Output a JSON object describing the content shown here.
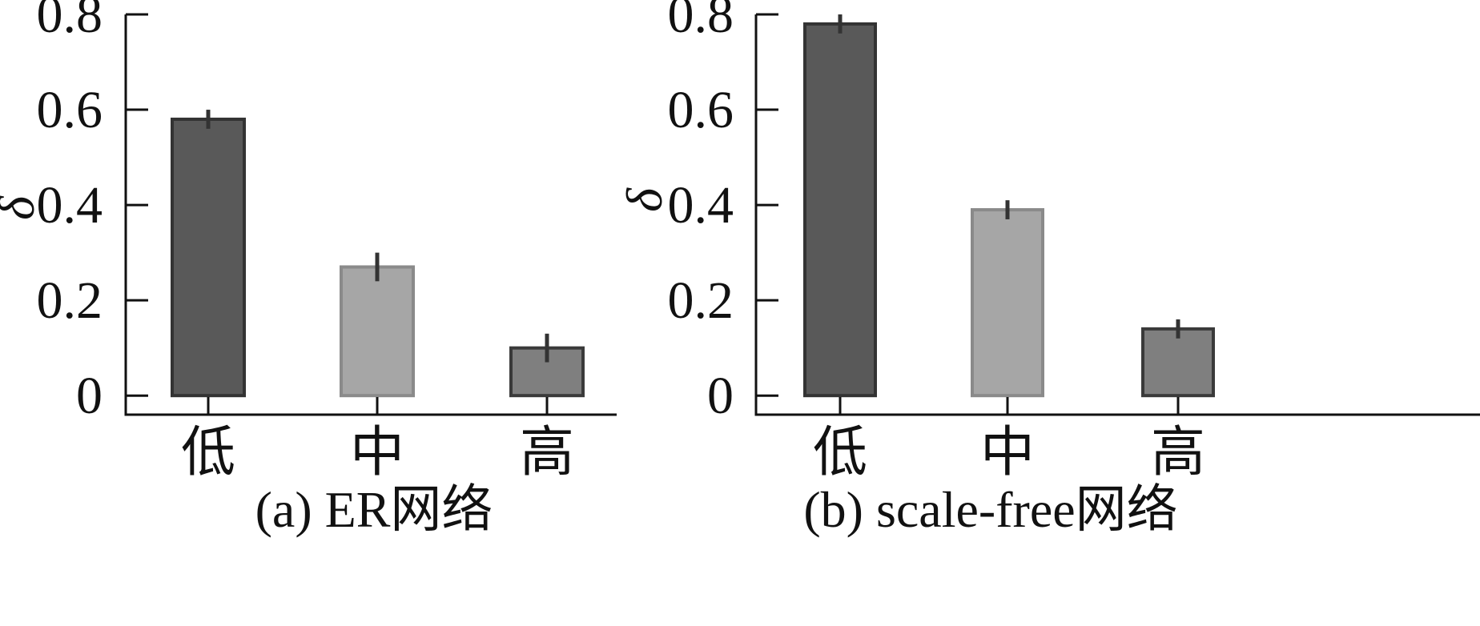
{
  "chart_data": [
    {
      "type": "bar",
      "caption": "(a) ER网络",
      "ylabel": "δ",
      "categories": [
        "低",
        "中",
        "高"
      ],
      "values": [
        0.58,
        0.27,
        0.1
      ],
      "errors": [
        0.02,
        0.03,
        0.03
      ],
      "ylim": [
        -0.04,
        0.8
      ],
      "yticks": [
        0,
        0.2,
        0.4,
        0.6,
        0.8
      ],
      "ytick_labels": [
        "0",
        "0.2",
        "0.4",
        "0.6",
        "0.8"
      ],
      "bar_colors": [
        "#595959",
        "#a6a6a6",
        "#7f7f7f"
      ],
      "edge_colors": [
        "#333333",
        "#8a8a8a",
        "#3a3a3a"
      ],
      "grid": false
    },
    {
      "type": "bar",
      "caption": "(b) scale-free网络",
      "ylabel": "δ",
      "categories": [
        "低",
        "中",
        "高"
      ],
      "values": [
        0.78,
        0.39,
        0.14
      ],
      "errors": [
        0.02,
        0.02,
        0.02
      ],
      "ylim": [
        -0.04,
        0.8
      ],
      "yticks": [
        0,
        0.2,
        0.4,
        0.6,
        0.8
      ],
      "ytick_labels": [
        "0",
        "0.2",
        "0.4",
        "0.6",
        "0.8"
      ],
      "bar_colors": [
        "#595959",
        "#a6a6a6",
        "#7f7f7f"
      ],
      "edge_colors": [
        "#333333",
        "#8a8a8a",
        "#3a3a3a"
      ],
      "grid": false
    }
  ]
}
